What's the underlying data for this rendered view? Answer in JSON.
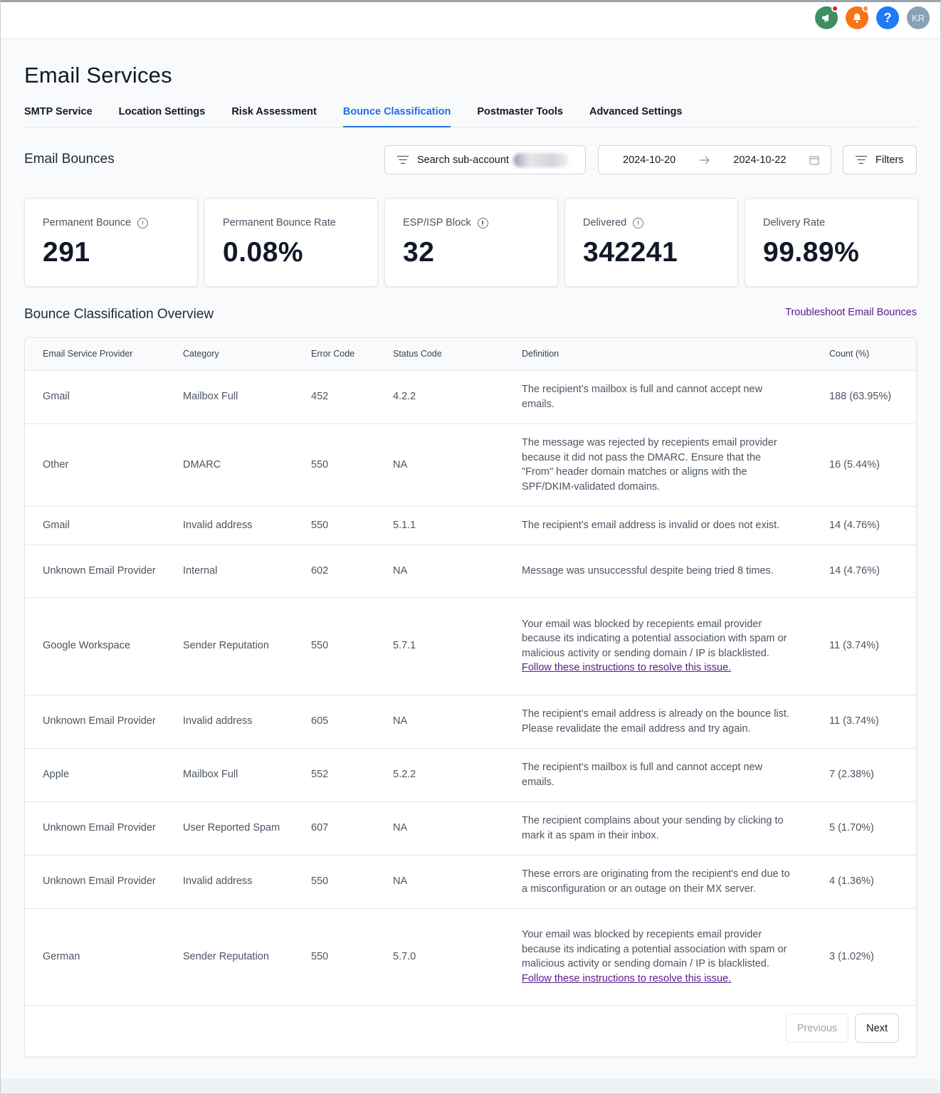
{
  "topbar": {
    "icons": [
      {
        "name": "megaphone-icon",
        "color": "#3f8f62"
      },
      {
        "name": "bell-icon",
        "color": "#f97316"
      },
      {
        "name": "help-icon",
        "glyph": "?",
        "color": "#1d7cf2"
      }
    ],
    "avatar_initials": "KR"
  },
  "page_title": "Email Services",
  "tabs": [
    {
      "label": "SMTP Service",
      "active": false
    },
    {
      "label": "Location Settings",
      "active": false
    },
    {
      "label": "Risk Assessment",
      "active": false
    },
    {
      "label": "Bounce Classification",
      "active": true
    },
    {
      "label": "Postmaster Tools",
      "active": false
    },
    {
      "label": "Advanced Settings",
      "active": false
    }
  ],
  "bounces": {
    "title": "Email Bounces",
    "search_label": "Search sub-account",
    "date_from": "2024-10-20",
    "date_to": "2024-10-22",
    "filters_label": "Filters"
  },
  "cards": [
    {
      "label": "Permanent Bounce",
      "value": "291",
      "info": true
    },
    {
      "label": "Permanent Bounce Rate",
      "value": "0.08%",
      "info": false
    },
    {
      "label": "ESP/ISP Block",
      "value": "32",
      "info": true
    },
    {
      "label": "Delivered",
      "value": "342241",
      "info": true
    },
    {
      "label": "Delivery Rate",
      "value": "99.89%",
      "info": false
    }
  ],
  "overview": {
    "title": "Bounce Classification Overview",
    "troubleshoot_link": "Troubleshoot Email Bounces",
    "columns": [
      "Email Service Provider",
      "Category",
      "Error Code",
      "Status Code",
      "Definition",
      "Count (%)"
    ],
    "rows": [
      {
        "esp": "Gmail",
        "category": "Mailbox Full",
        "error": "452",
        "status": "4.2.2",
        "definition": "The recipient's mailbox is full and cannot accept new emails.",
        "link": "",
        "count": "188 (63.95%)"
      },
      {
        "esp": "Other",
        "category": "DMARC",
        "error": "550",
        "status": "NA",
        "definition": "The message was rejected by recepients email provider because it did not pass the DMARC. Ensure that the \"From\" header domain matches or aligns with the SPF/DKIM-validated domains.",
        "link": "",
        "count": "16 (5.44%)"
      },
      {
        "esp": "Gmail",
        "category": "Invalid address",
        "error": "550",
        "status": "5.1.1",
        "definition": "The recipient's email address is invalid or does not exist.",
        "link": "",
        "count": "14 (4.76%)"
      },
      {
        "esp": "Unknown Email Provider",
        "category": "Internal",
        "error": "602",
        "status": "NA",
        "definition": "Message was unsuccessful despite being tried 8 times.",
        "link": "",
        "count": "14 (4.76%)"
      },
      {
        "esp": "Google Workspace",
        "category": "Sender Reputation",
        "error": "550",
        "status": "5.7.1",
        "definition": "Your email was blocked by recepients email provider because its indicating a potential association with spam or malicious activity or sending domain / IP is blacklisted.",
        "link": "Follow these instructions to resolve this issue.",
        "count": "11 (3.74%)"
      },
      {
        "esp": "Unknown Email Provider",
        "category": "Invalid address",
        "error": "605",
        "status": "NA",
        "definition": "The recipient's email address is already on the bounce list. Please revalidate the email address and try again.",
        "link": "",
        "count": "11 (3.74%)"
      },
      {
        "esp": "Apple",
        "category": "Mailbox Full",
        "error": "552",
        "status": "5.2.2",
        "definition": "The recipient's mailbox is full and cannot accept new emails.",
        "link": "",
        "count": "7 (2.38%)"
      },
      {
        "esp": "Unknown Email Provider",
        "category": "User Reported Spam",
        "error": "607",
        "status": "NA",
        "definition": "The recipient complains about your sending by clicking to mark it as spam in their inbox.",
        "link": "",
        "count": "5 (1.70%)"
      },
      {
        "esp": "Unknown Email Provider",
        "category": "Invalid address",
        "error": "550",
        "status": "NA",
        "definition": "These errors are originating from the recipient's end due to a misconfiguration or an outage on their MX server.",
        "link": "",
        "count": "4 (1.36%)"
      },
      {
        "esp": "German",
        "category": "Sender Reputation",
        "error": "550",
        "status": "5.7.0",
        "definition": "Your email was blocked by recepients email provider because its indicating a potential association with spam or malicious activity or sending domain / IP is blacklisted.",
        "link": "Follow these instructions to resolve this issue.",
        "count": "3 (1.02%)"
      }
    ],
    "pager": {
      "previous": "Previous",
      "next": "Next"
    }
  }
}
